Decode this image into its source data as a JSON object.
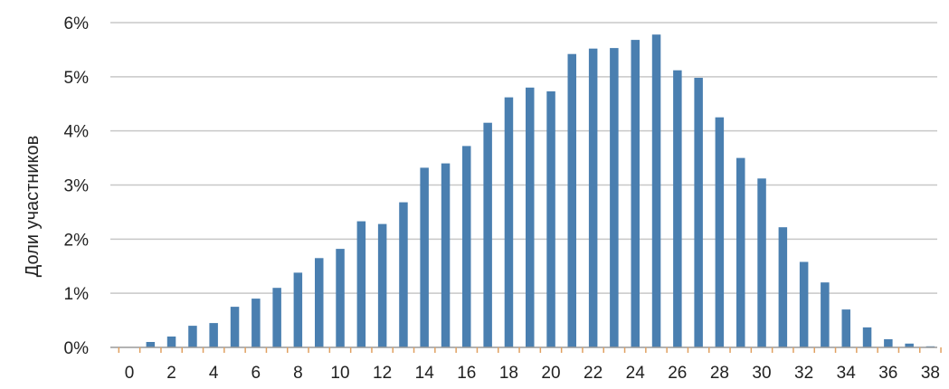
{
  "chart_data": {
    "type": "bar",
    "title": "",
    "xlabel": "",
    "ylabel": "Доли участников",
    "x": [
      0,
      1,
      2,
      3,
      4,
      5,
      6,
      7,
      8,
      9,
      10,
      11,
      12,
      13,
      14,
      15,
      16,
      17,
      18,
      19,
      20,
      21,
      22,
      23,
      24,
      25,
      26,
      27,
      28,
      29,
      30,
      31,
      32,
      33,
      34,
      35,
      36,
      37,
      38
    ],
    "values": [
      0.0,
      0.1,
      0.2,
      0.4,
      0.45,
      0.75,
      0.9,
      1.1,
      1.38,
      1.65,
      1.82,
      2.33,
      2.28,
      2.68,
      3.32,
      3.4,
      3.72,
      4.15,
      4.62,
      4.8,
      4.73,
      5.42,
      5.52,
      5.53,
      5.68,
      5.78,
      5.12,
      4.98,
      4.25,
      3.5,
      3.12,
      2.22,
      1.58,
      1.2,
      0.7,
      0.37,
      0.15,
      0.07,
      0.02
    ],
    "x_tick_labels": [
      "0",
      "2",
      "4",
      "6",
      "8",
      "10",
      "12",
      "14",
      "16",
      "18",
      "20",
      "22",
      "24",
      "26",
      "28",
      "30",
      "32",
      "34",
      "36",
      "38"
    ],
    "y_tick_labels": [
      "0%",
      "1%",
      "2%",
      "3%",
      "4%",
      "5%",
      "6%"
    ],
    "ylim": [
      0,
      6
    ],
    "xlim": [
      0,
      38
    ],
    "grid": true,
    "legend": "none",
    "colors": {
      "bar": "#4a7fb0",
      "grid": "#c8c8c8",
      "axis": "#9a9a9a",
      "tick": "#e0a060"
    }
  }
}
